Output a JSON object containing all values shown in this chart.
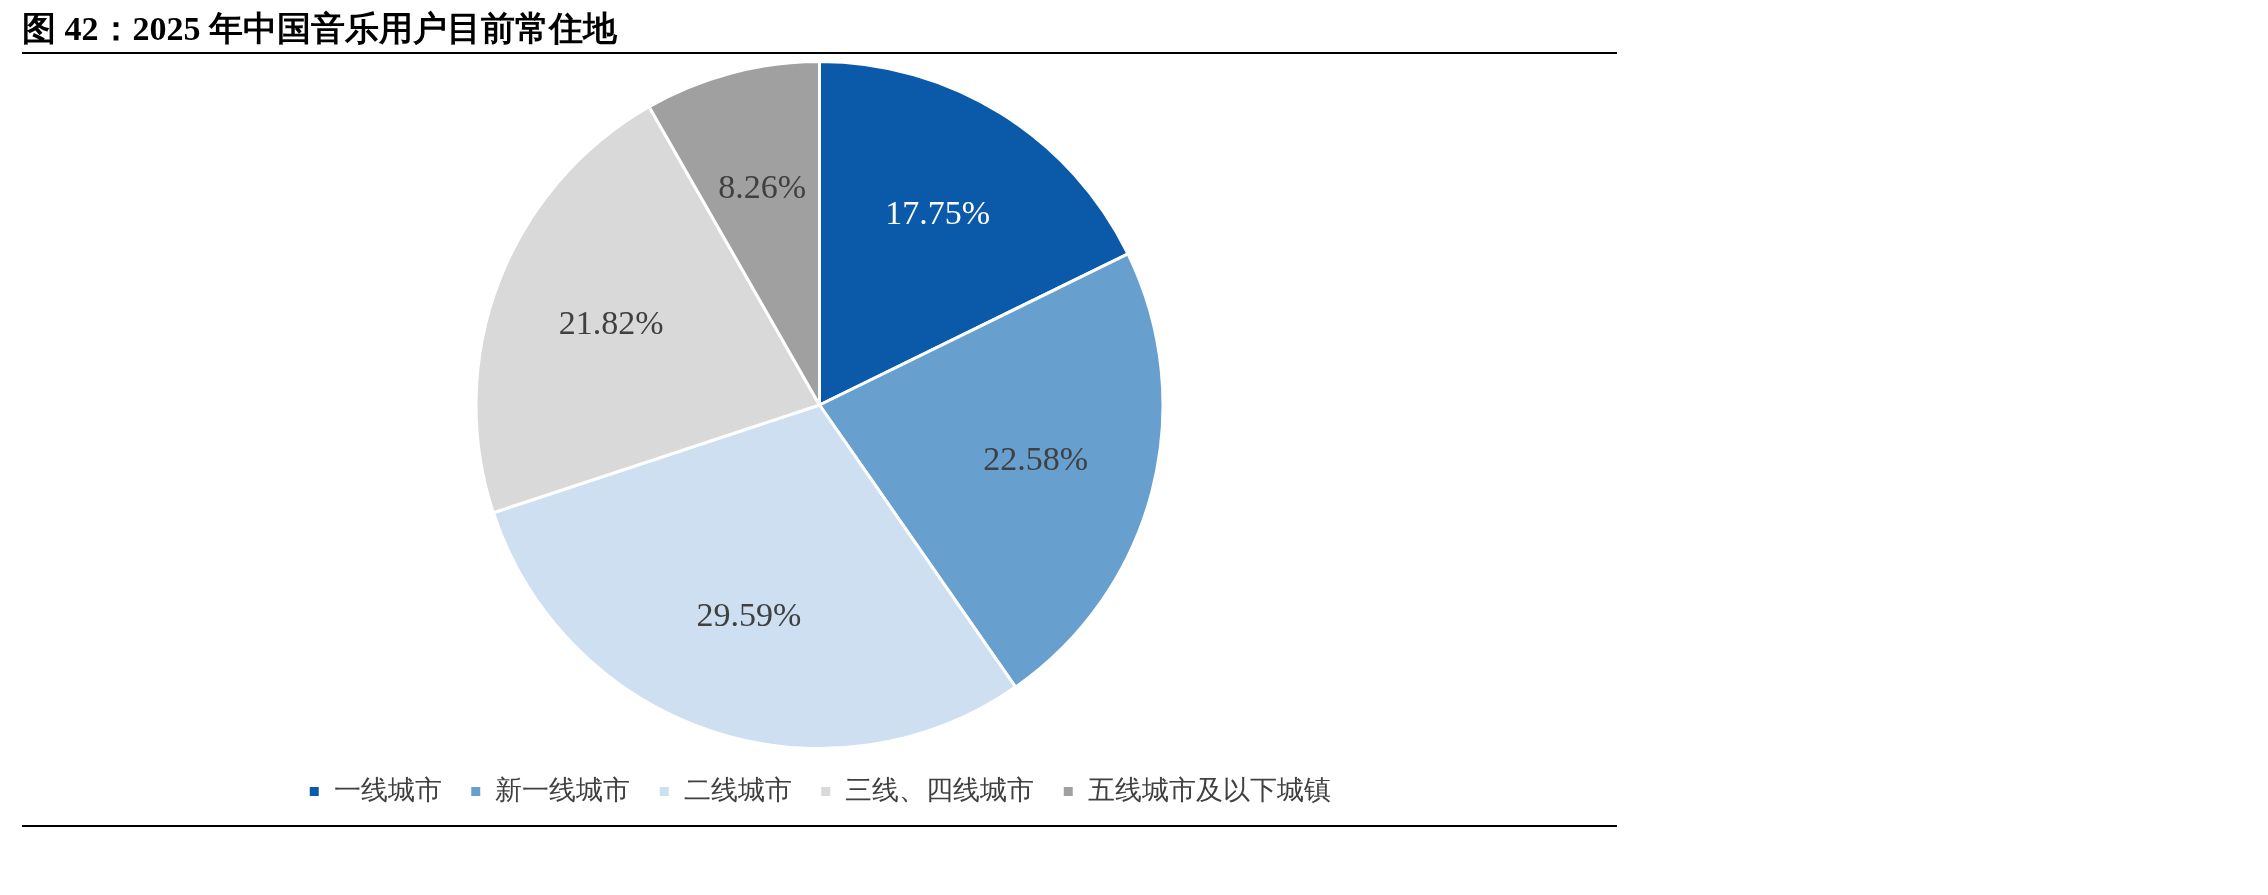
{
  "chart_data": {
    "type": "pie",
    "title": "图 42：2025 年中国音乐用户目前常住地",
    "categories": [
      "一线城市",
      "新一线城市",
      "二线城市",
      "三线、四线城市",
      "五线城市及以下城镇"
    ],
    "values": [
      17.75,
      22.58,
      29.59,
      21.82,
      8.26
    ],
    "colors": [
      "#0b5aa9",
      "#679fcf",
      "#cddff0",
      "#d9d9d9",
      "#a0a0a0"
    ],
    "value_labels": [
      "17.75%",
      "22.58%",
      "29.59%",
      "21.82%",
      "8.26%"
    ],
    "legend": "bottom"
  }
}
